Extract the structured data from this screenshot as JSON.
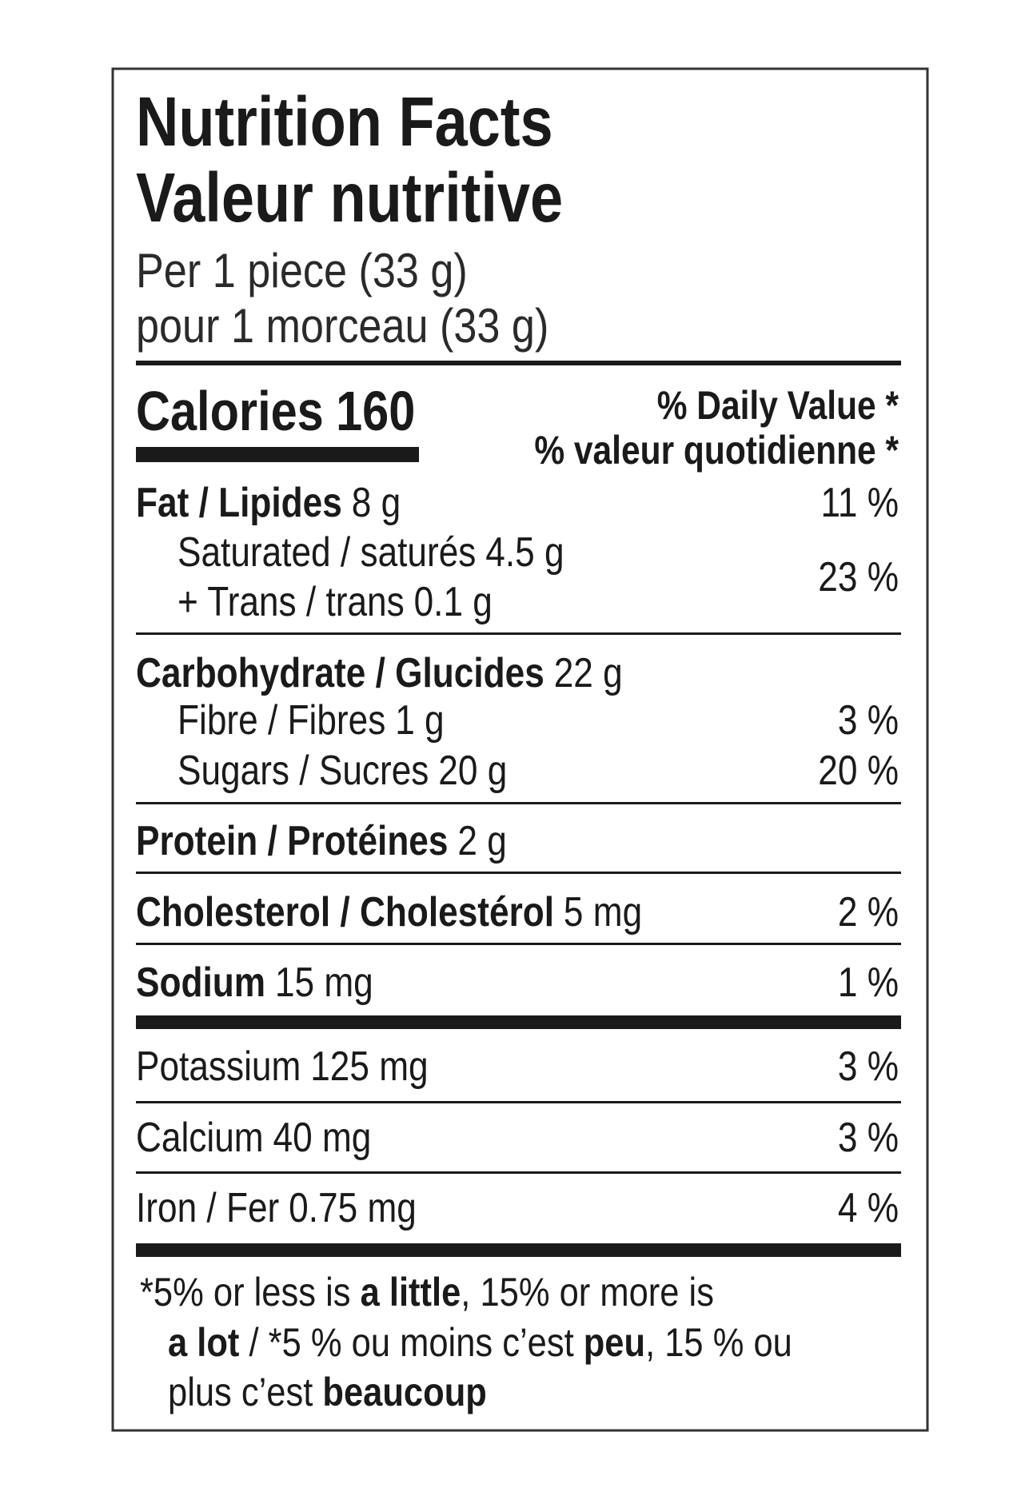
{
  "header": {
    "title_en": "Nutrition Facts",
    "title_fr": "Valeur nutritive",
    "serving_en": "Per 1 piece (33 g)",
    "serving_fr": "pour 1 morceau (33 g)"
  },
  "calories": {
    "label": "Calories",
    "value": "160"
  },
  "daily_value_header": {
    "en": "% Daily Value *",
    "fr": "% valeur quotidienne *"
  },
  "nutrients": {
    "fat": {
      "name": "Fat / Lipides",
      "amount": "8 g",
      "dv": "11 %"
    },
    "saturated": {
      "name": "Saturated / saturés",
      "amount": "4.5 g"
    },
    "trans": {
      "name": "+ Trans / trans",
      "amount": "0.1 g"
    },
    "saturated_trans_dv": "23 %",
    "carbohydrate": {
      "name": "Carbohydrate / Glucides",
      "amount": "22 g"
    },
    "fibre": {
      "name": "Fibre / Fibres",
      "amount": "1 g",
      "dv": "3 %"
    },
    "sugars": {
      "name": "Sugars / Sucres",
      "amount": "20 g",
      "dv": "20 %"
    },
    "protein": {
      "name": "Protein / Protéines",
      "amount": "2 g"
    },
    "cholesterol": {
      "name": "Cholesterol / Cholestérol",
      "amount": "5 mg",
      "dv": "2 %"
    },
    "sodium": {
      "name": "Sodium",
      "amount": "15 mg",
      "dv": "1 %"
    },
    "potassium": {
      "name": "Potassium",
      "amount": "125 mg",
      "dv": "3 %"
    },
    "calcium": {
      "name": "Calcium",
      "amount": "40 mg",
      "dv": "3 %"
    },
    "iron": {
      "name": "Iron / Fer",
      "amount": "0.75 mg",
      "dv": "4 %"
    }
  },
  "footnote": [
    [
      "*5% or less is ",
      "a little",
      ", 15% or more is"
    ],
    [
      "a lot",
      " / *5 % ou moins c’est ",
      "peu",
      ", 15 % ou"
    ],
    [
      "plus c’est ",
      "beaucoup"
    ]
  ]
}
